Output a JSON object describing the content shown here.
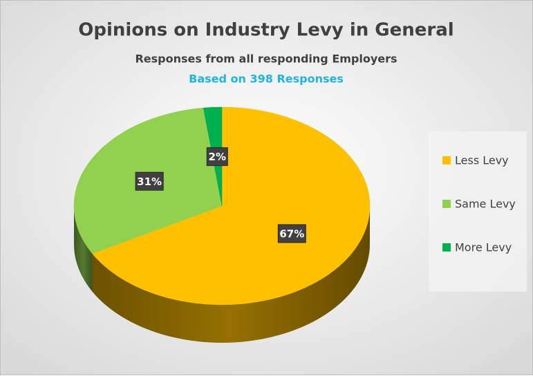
{
  "chart_data": {
    "type": "pie",
    "title": "Opinions on Industry Levy in General",
    "subtitle": "Responses from all responding Employers",
    "annotation": "Based on 398 Responses",
    "categories": [
      "Less Levy",
      "Same Levy",
      "More Levy"
    ],
    "values": [
      67,
      31,
      2
    ],
    "value_labels": [
      "67%",
      "31%",
      "2%"
    ],
    "colors": [
      "#ffc000",
      "#92d050",
      "#00b050"
    ],
    "legend": "right",
    "three_d": true
  }
}
